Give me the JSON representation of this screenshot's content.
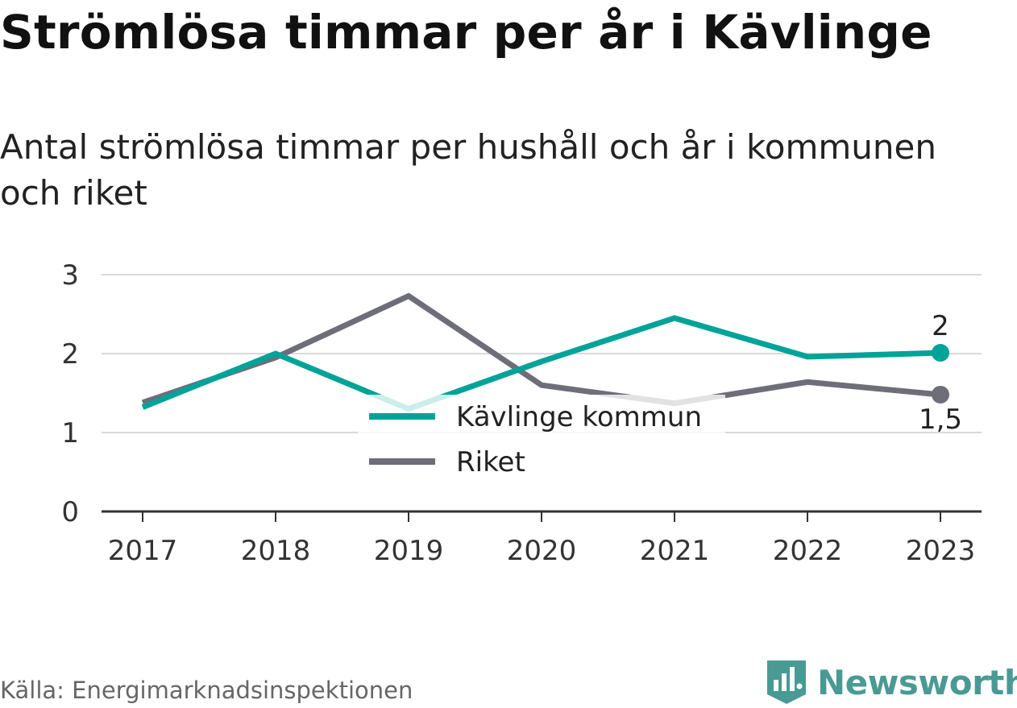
{
  "title": "Strömlösa timmar per år i Kävlinge",
  "subtitle": "Antal strömlösa timmar per hushåll och år i kommunen och riket",
  "source": "Källa: Energimarknadsinspektionen",
  "brand": {
    "name": "Newsworthy",
    "color": "#4a9a94"
  },
  "chart_data": {
    "type": "line",
    "x": [
      "2017",
      "2018",
      "2019",
      "2020",
      "2021",
      "2022",
      "2023"
    ],
    "ylim": [
      0,
      3
    ],
    "yticks": [
      "0",
      "1",
      "2",
      "3"
    ],
    "grid": true,
    "legend": "center",
    "series": [
      {
        "name": "Kävlinge kommun",
        "color": "#00a398",
        "values": [
          1.32,
          2.0,
          1.3,
          1.9,
          2.45,
          1.96,
          2.01
        ],
        "end_label": "2"
      },
      {
        "name": "Riket",
        "color": "#6e6e78",
        "values": [
          1.38,
          1.95,
          2.73,
          1.6,
          1.37,
          1.64,
          1.48
        ],
        "end_label": "1,5"
      }
    ]
  }
}
